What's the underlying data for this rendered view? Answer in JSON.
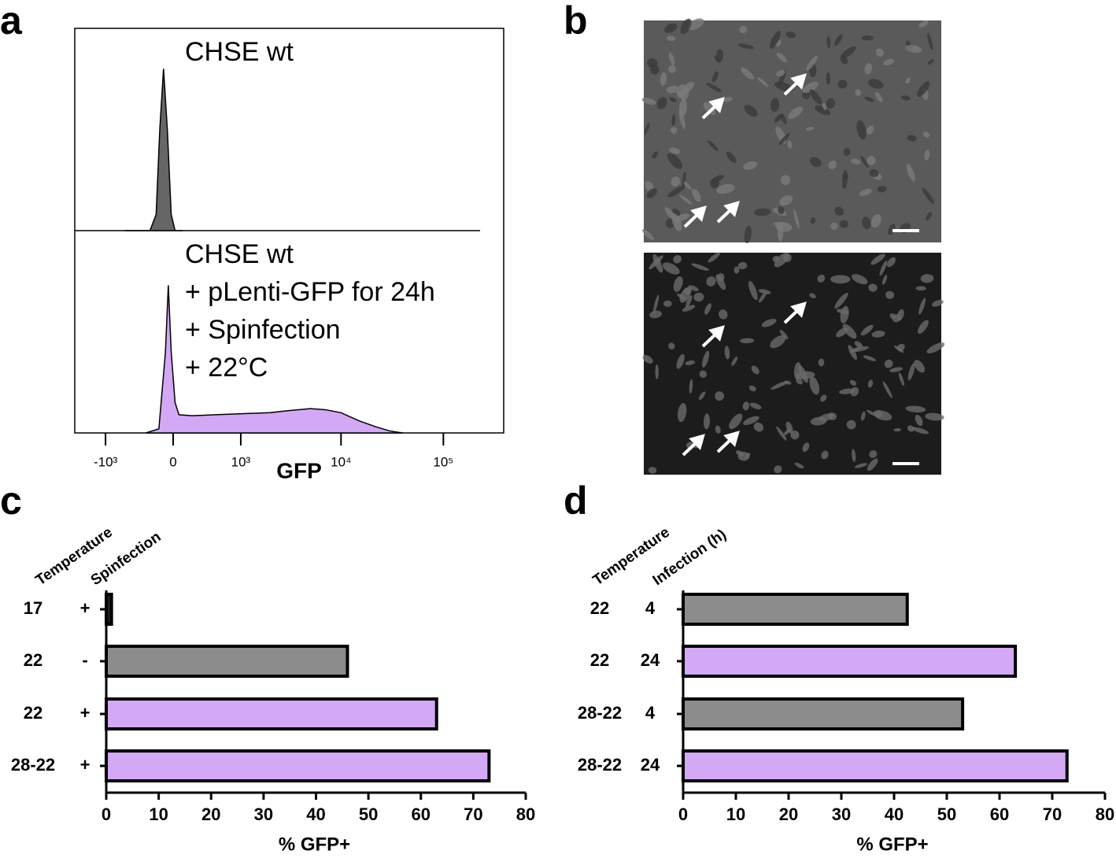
{
  "chart_data": [
    {
      "type": "histogram",
      "panel": "a",
      "xlabel": "GFP",
      "xscale": "biexponential",
      "xlim": [
        -2000,
        400000
      ],
      "ylim": [
        0,
        100
      ],
      "xticks": [
        {
          "value": -1000,
          "label": "-10³"
        },
        0,
        {
          "value": 1000,
          "label": "10³"
        },
        {
          "value": 10000,
          "label": "10⁴"
        },
        {
          "value": 100000,
          "label": "10⁵"
        }
      ],
      "series": [
        {
          "color": "#666666",
          "annotation": [
            "CHSE wt"
          ],
          "x": [
            -600,
            -250,
            -180,
            -140,
            -100,
            -60,
            -20,
            20,
            100
          ],
          "values": [
            0,
            0,
            8,
            50,
            80,
            50,
            8,
            0,
            0
          ]
        },
        {
          "color": "#d3a8f5",
          "annotation": [
            "CHSE wt",
            "+ pLenti-GFP for 24h",
            "+ Spinfection",
            "+ 22°C"
          ],
          "x": [
            -300,
            -150,
            -80,
            -50,
            -20,
            20,
            60,
            200,
            500,
            1000,
            2000,
            3000,
            5000,
            7000,
            10000,
            15000,
            22000,
            30000,
            40000
          ],
          "values": [
            0,
            2,
            40,
            73,
            40,
            15,
            9,
            8.5,
            9,
            9.5,
            10,
            11,
            12,
            11.5,
            10,
            6,
            3,
            1,
            0
          ]
        }
      ]
    },
    {
      "type": "bar",
      "panel": "c",
      "orientation": "horizontal",
      "xlabel": "% GFP+",
      "row_headers": [
        "Temperature",
        "Spinfection"
      ],
      "categories": [
        [
          "17",
          "+"
        ],
        [
          "22",
          "-"
        ],
        [
          "22",
          "+"
        ],
        [
          "28-22",
          "+"
        ]
      ],
      "values": [
        1,
        46,
        63,
        73
      ],
      "colors": [
        "#222222",
        "#8c8c8c",
        "#d3a8f5",
        "#d3a8f5"
      ],
      "xlim": [
        0,
        80
      ],
      "xticks": [
        0,
        10,
        20,
        30,
        40,
        50,
        60,
        70,
        80
      ]
    },
    {
      "type": "bar",
      "panel": "d",
      "orientation": "horizontal",
      "xlabel": "% GFP+",
      "row_headers": [
        "Temperature",
        "Infection (h)"
      ],
      "categories": [
        [
          "22",
          "4"
        ],
        [
          "22",
          "24"
        ],
        [
          "28-22",
          "4"
        ],
        [
          "28-22",
          "24"
        ]
      ],
      "values": [
        42.5,
        63,
        53,
        72.8
      ],
      "colors": [
        "#8c8c8c",
        "#d3a8f5",
        "#8c8c8c",
        "#d3a8f5"
      ],
      "xlim": [
        0,
        80
      ],
      "xticks": [
        0,
        10,
        20,
        30,
        40,
        50,
        60,
        70,
        80
      ]
    }
  ],
  "image_panel": {
    "panel": "b"
  }
}
